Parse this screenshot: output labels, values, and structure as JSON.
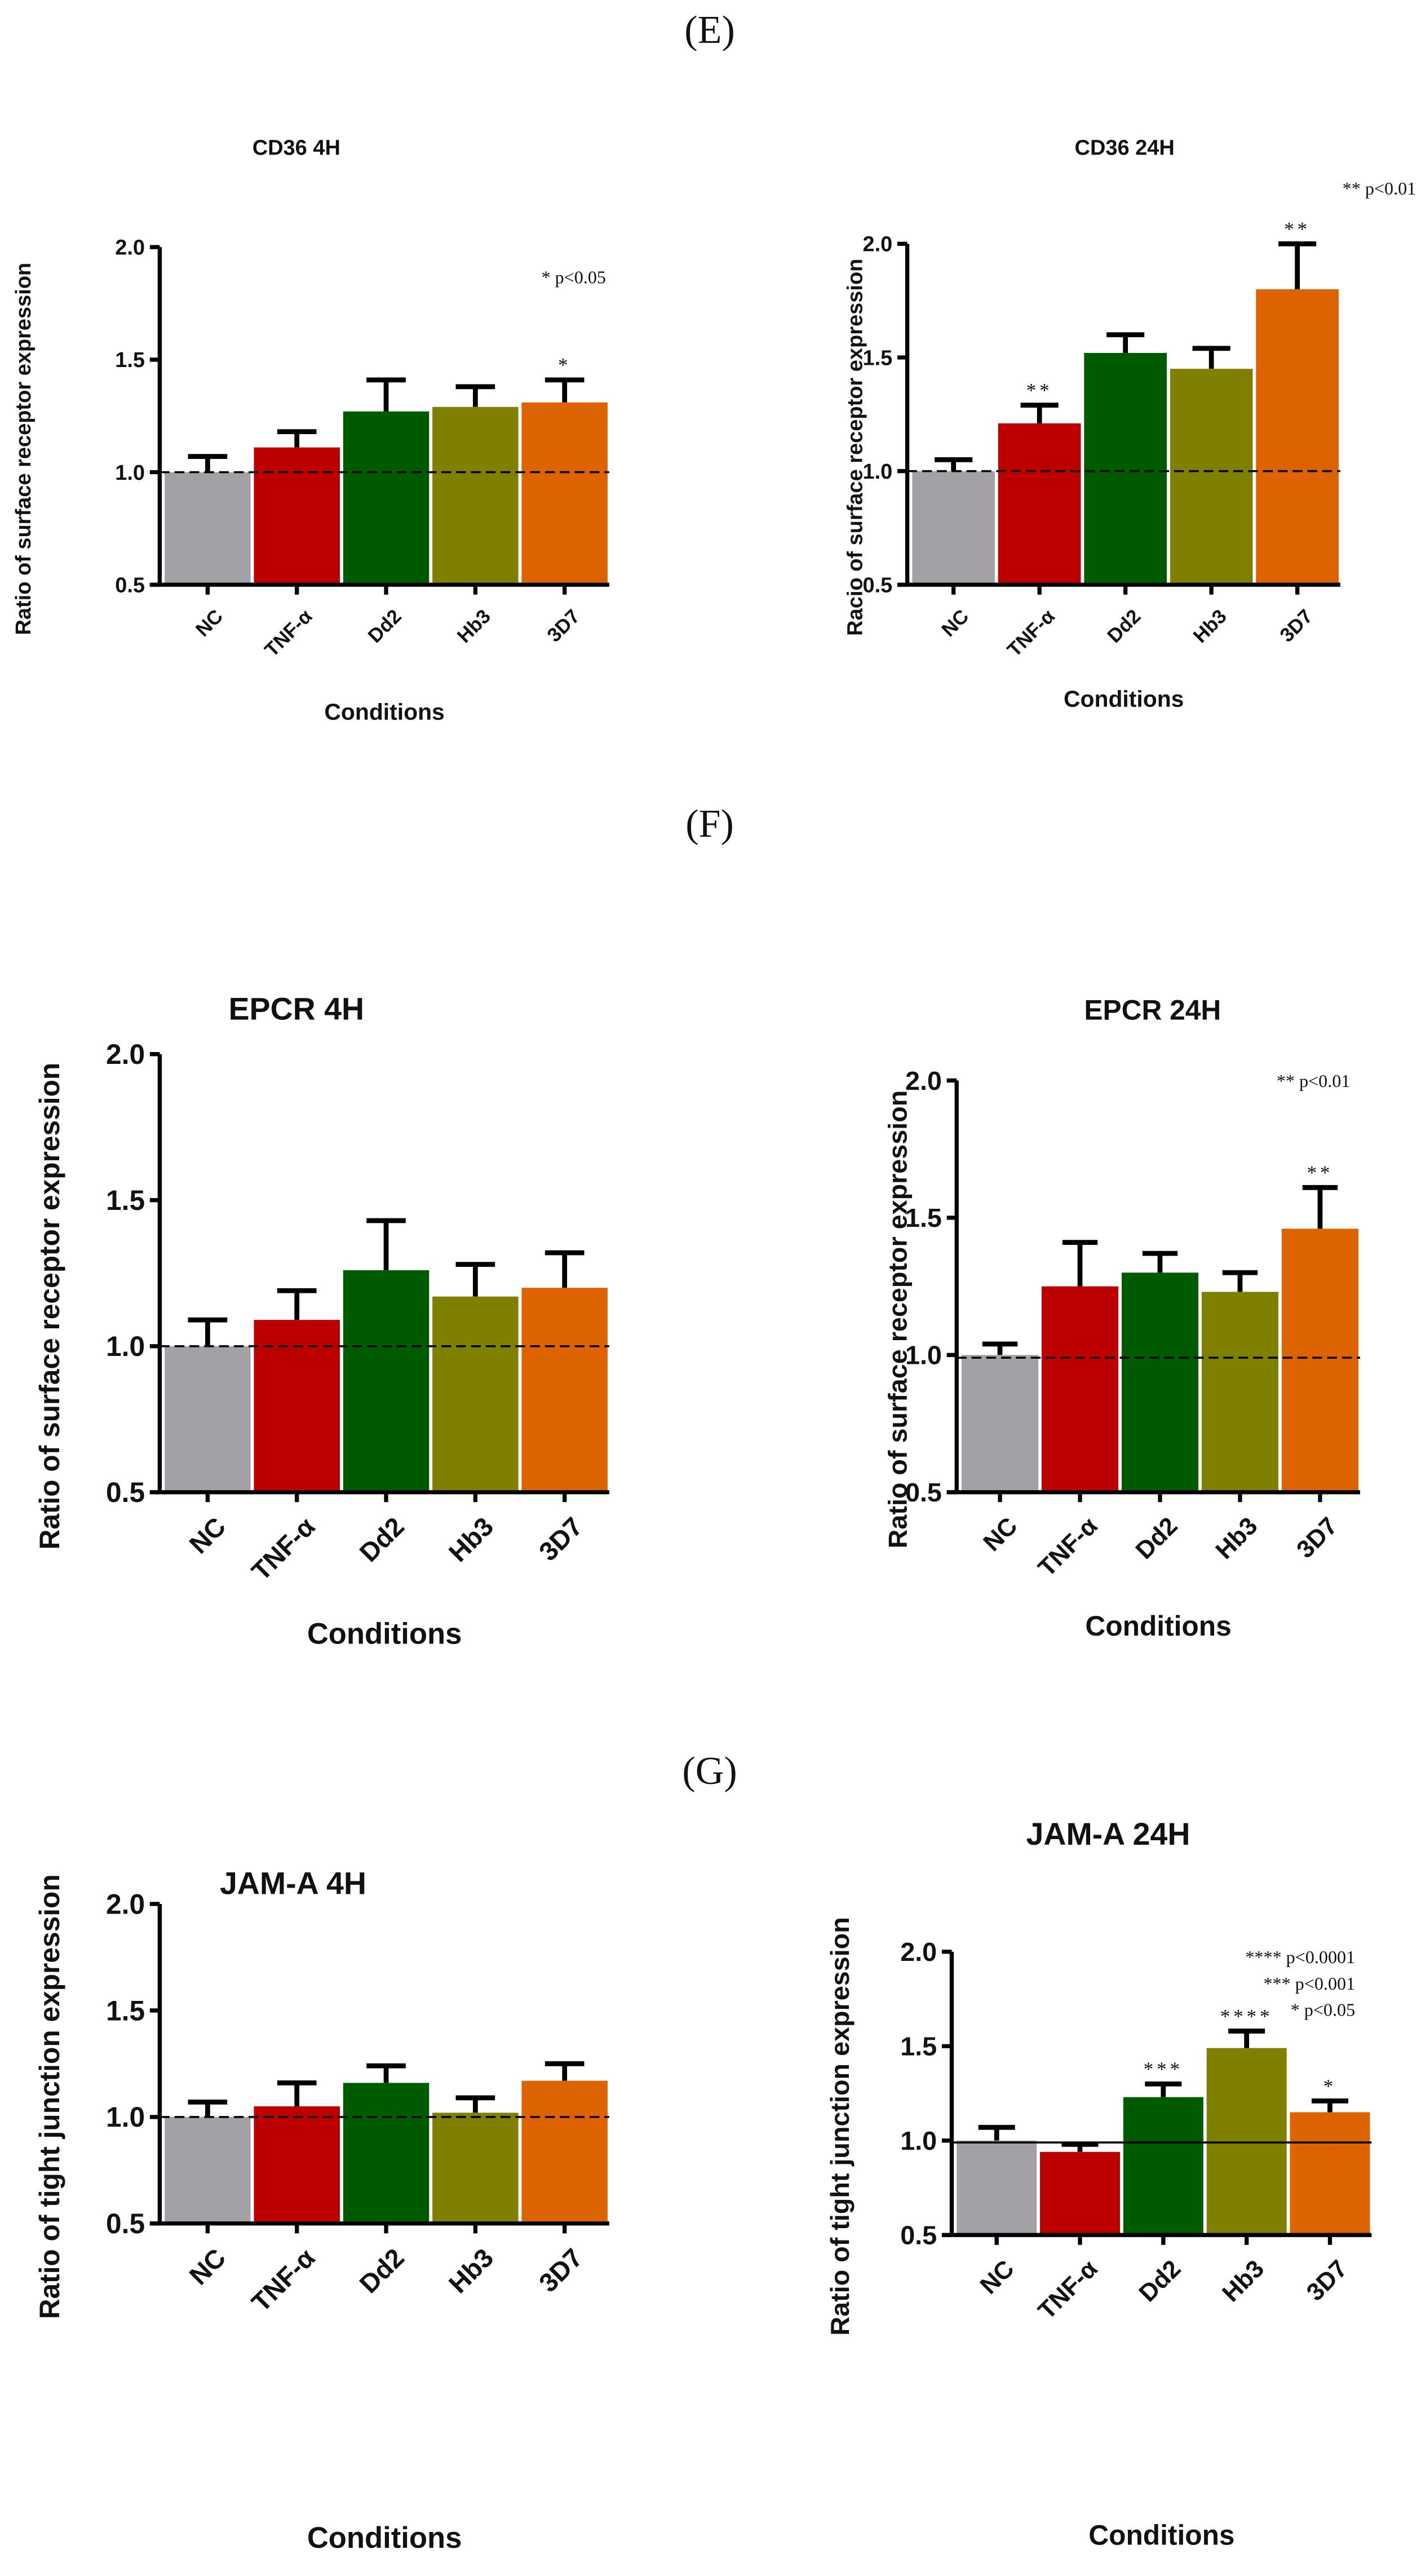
{
  "panel_labels": [
    "(E)",
    "(F)",
    "(G)"
  ],
  "colors": {
    "NC": "#a3a1a6",
    "TNF-α": "#bc0000",
    "Dd2": "#005a00",
    "Hb3": "#7f8000",
    "3D7": "#dd6200"
  },
  "chart_data": [
    {
      "type": "bar",
      "title": "CD36 4H",
      "xlabel": "Conditions",
      "ylabel": "Ratio of surface receptor expression",
      "ylim": [
        0.5,
        2.0
      ],
      "yticks": [
        "0.5",
        "1.0",
        "1.5",
        "2.0"
      ],
      "categories": [
        "NC",
        "TNF-α",
        "Dd2",
        "Hb3",
        "3D7"
      ],
      "values": [
        1.0,
        1.11,
        1.27,
        1.29,
        1.31
      ],
      "errors": [
        0.07,
        0.07,
        0.14,
        0.09,
        0.1
      ],
      "significance": [
        "",
        "",
        "",
        "",
        "*"
      ],
      "legend": [
        "* p<0.05"
      ],
      "reference_line": {
        "y": 1.0,
        "style": "dashed"
      }
    },
    {
      "type": "bar",
      "title": "CD36 24H",
      "xlabel": "Conditions",
      "ylabel": "Racio of surface receptor expression",
      "ylim": [
        0.5,
        2.0
      ],
      "yticks": [
        "0.5",
        "1.0",
        "1.5",
        "2.0"
      ],
      "categories": [
        "NC",
        "TNF-α",
        "Dd2",
        "Hb3",
        "3D7"
      ],
      "values": [
        1.0,
        1.21,
        1.52,
        1.45,
        1.8
      ],
      "errors": [
        0.05,
        0.08,
        0.08,
        0.09,
        0.2
      ],
      "significance": [
        "",
        "**",
        "",
        "",
        "**"
      ],
      "legend": [
        "** p<0.01"
      ],
      "reference_line": {
        "y": 1.0,
        "style": "dashed"
      }
    },
    {
      "type": "bar",
      "title": "EPCR 4H",
      "xlabel": "Conditions",
      "ylabel": "Ratio of surface receptor expression",
      "ylim": [
        0.5,
        2.0
      ],
      "yticks": [
        "0.5",
        "1.0",
        "1.5",
        "2.0"
      ],
      "categories": [
        "NC",
        "TNF-α",
        "Dd2",
        "Hb3",
        "3D7"
      ],
      "values": [
        1.0,
        1.09,
        1.26,
        1.17,
        1.2
      ],
      "errors": [
        0.09,
        0.1,
        0.17,
        0.11,
        0.12
      ],
      "significance": [
        "",
        "",
        "",
        "",
        ""
      ],
      "legend": [],
      "reference_line": {
        "y": 1.0,
        "style": "dashed"
      }
    },
    {
      "type": "bar",
      "title": "EPCR 24H",
      "xlabel": "Conditions",
      "ylabel": "Ratio of surface receptor expression",
      "ylim": [
        0.5,
        2.0
      ],
      "yticks": [
        "0.5",
        "1.0",
        "1.5",
        "2.0"
      ],
      "categories": [
        "NC",
        "TNF-α",
        "Dd2",
        "Hb3",
        "3D7"
      ],
      "values": [
        1.0,
        1.25,
        1.3,
        1.23,
        1.46
      ],
      "errors": [
        0.04,
        0.16,
        0.07,
        0.07,
        0.15
      ],
      "significance": [
        "",
        "",
        "",
        "",
        "**"
      ],
      "legend": [
        "** p<0.01"
      ],
      "reference_line": {
        "y": 0.99,
        "style": "dashed"
      }
    },
    {
      "type": "bar",
      "title": "JAM-A 4H",
      "xlabel": "Conditions",
      "ylabel": "Ratio of tight junction expression",
      "ylim": [
        0.5,
        2.0
      ],
      "yticks": [
        "0.5",
        "1.0",
        "1.5",
        "2.0"
      ],
      "categories": [
        "NC",
        "TNF-α",
        "Dd2",
        "Hb3",
        "3D7"
      ],
      "values": [
        1.0,
        1.05,
        1.16,
        1.02,
        1.17
      ],
      "errors": [
        0.07,
        0.11,
        0.08,
        0.07,
        0.08
      ],
      "significance": [
        "",
        "",
        "",
        "",
        ""
      ],
      "legend": [],
      "reference_line": {
        "y": 1.0,
        "style": "dashed"
      }
    },
    {
      "type": "bar",
      "title": "JAM-A 24H",
      "xlabel": "Conditions",
      "ylabel": "Ratio of tight junction expression",
      "ylim": [
        0.5,
        2.0
      ],
      "yticks": [
        "0.5",
        "1.0",
        "1.5",
        "2.0"
      ],
      "categories": [
        "NC",
        "TNF-α",
        "Dd2",
        "Hb3",
        "3D7"
      ],
      "values": [
        1.0,
        0.94,
        1.23,
        1.49,
        1.15
      ],
      "errors": [
        0.07,
        0.04,
        0.07,
        0.09,
        0.06
      ],
      "significance": [
        "",
        "",
        "***",
        "****",
        "*"
      ],
      "legend": [
        "**** p<0.0001",
        "*** p<0.001",
        "* p<0.05"
      ],
      "reference_line": {
        "y": 0.99,
        "style": "solid"
      }
    }
  ]
}
